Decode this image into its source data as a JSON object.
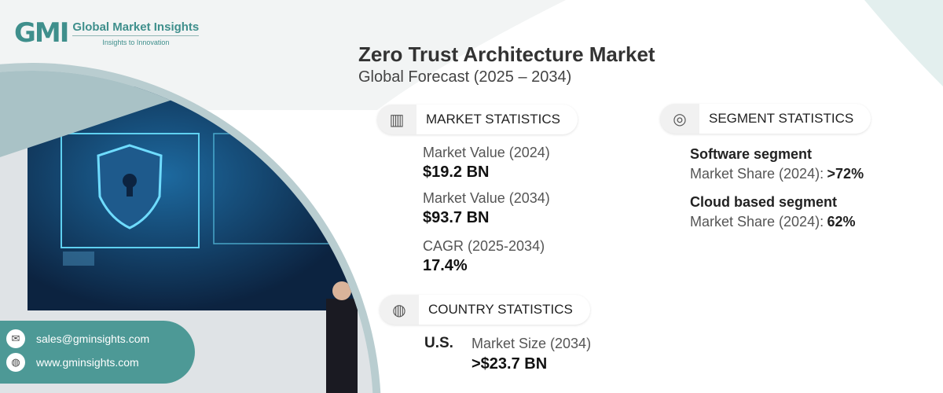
{
  "brand": {
    "mark": "GMI",
    "name": "Global Market Insights",
    "tagline": "Insights to Innovation"
  },
  "header": {
    "title": "Zero Trust Architecture Market",
    "subtitle": "Global Forecast (2025 – 2034)"
  },
  "market_statistics": {
    "label": "MARKET STATISTICS",
    "items": [
      {
        "label": "Market Value (2024)",
        "value": "$19.2 BN"
      },
      {
        "label": "Market Value (2034)",
        "value": "$93.7 BN"
      },
      {
        "label": "CAGR (2025-2034)",
        "value": "17.4%"
      }
    ]
  },
  "segment_statistics": {
    "label": "SEGMENT STATISTICS",
    "items": [
      {
        "name": "Software segment",
        "label": "Market Share (2024):",
        "value": ">72%"
      },
      {
        "name": "Cloud based segment",
        "label": "Market Share (2024):",
        "value": "62%"
      }
    ]
  },
  "country_statistics": {
    "label": "COUNTRY STATISTICS",
    "country": "U.S.",
    "label2": "Market Size (2034)",
    "value": ">$23.7 BN"
  },
  "contact": {
    "email": "sales@gminsights.com",
    "website": "www.gminsights.com"
  },
  "colors": {
    "accent": "#4d9996",
    "dark": "#0f2a47"
  }
}
